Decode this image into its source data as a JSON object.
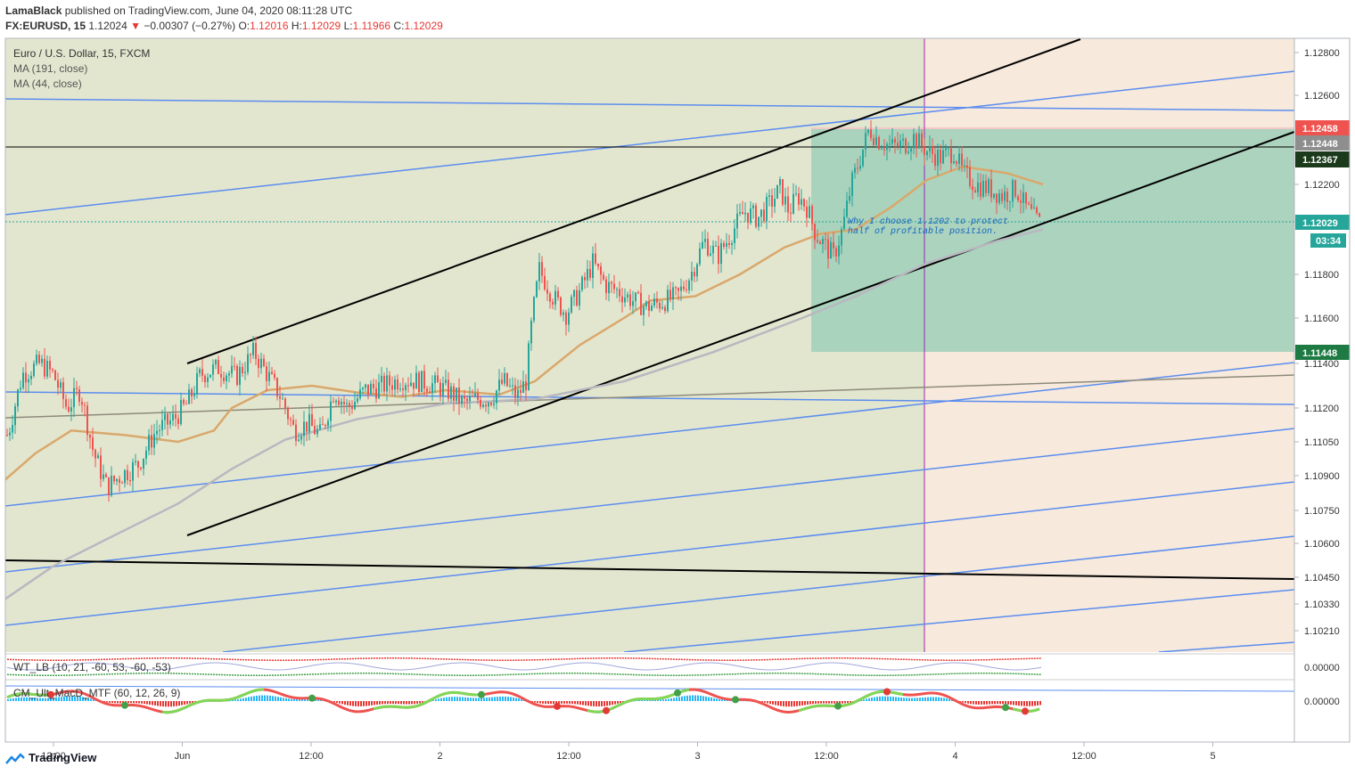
{
  "header": {
    "line1": {
      "author": "LamaBlack",
      "text": " published on TradingView.com, June 04, 2020 08:11:28 UTC"
    },
    "line2": {
      "symbol": "FX:EURUSD, 15",
      "price": "1.12024",
      "change": "−0.00307 (−0.27%)",
      "open_label": "O:",
      "open": "1.12016",
      "high_label": "H:",
      "high": "1.12029",
      "low_label": "L:",
      "low": "1.11966",
      "close_label": "C:",
      "close": "1.12029"
    }
  },
  "legend": {
    "title": "Euro / U.S. Dollar, 15, FXCM",
    "ma1": "MA (191, close)",
    "ma2": "MA (44, close)"
  },
  "annotation": {
    "line1": "Why I choose 1.1202 to protect",
    "line2": "half of profitable position."
  },
  "indicators": {
    "wt": "WT_LB (10, 21, -60, 53, -60, -53)",
    "macd": "CM_Ult_MacD_MTF (60, 12, 26, 9)",
    "wt_value": "0.00000",
    "macd_value": "0.00000"
  },
  "price_axis": [
    "1.12800",
    "1.12600",
    "1.12200",
    "1.11800",
    "1.11600",
    "1.11400",
    "1.11200",
    "1.11050",
    "1.10900",
    "1.10750",
    "1.10600",
    "1.10450",
    "1.10330",
    "1.10210"
  ],
  "price_tags": {
    "stop": "1.12458",
    "entry": "1.12448",
    "line": "1.12367",
    "current": "1.12029",
    "countdown": "03:34",
    "target": "1.11448"
  },
  "time_axis": [
    "12:00",
    "Jun",
    "12:00",
    "2",
    "12:00",
    "3",
    "12:00",
    "4",
    "12:00",
    "5"
  ],
  "footer": {
    "brand": "TradingView"
  },
  "colors": {
    "bull": "#26a69a",
    "bear": "#ef5350",
    "trend": "#000000",
    "channel": "#5b8def",
    "ma44": "#d9a86c",
    "ma191": "#b8b8c0",
    "stop_zone": "#f6d5d5",
    "target_zone": "#9ed1bc"
  },
  "chart_data": {
    "type": "candlestick",
    "symbol": "FX:EURUSD, 15",
    "title": "Euro / U.S. Dollar, 15, FXCM",
    "x": [
      "12:00",
      "Jun",
      "12:00",
      "2",
      "12:00",
      "3",
      "12:00",
      "4",
      "12:00",
      "5"
    ],
    "ylim": [
      1.1016,
      1.1288
    ],
    "price_path": [
      [
        0,
        1.11
      ],
      [
        10,
        1.111
      ],
      [
        25,
        1.1135
      ],
      [
        45,
        1.114
      ],
      [
        60,
        1.1135
      ],
      [
        75,
        1.112
      ],
      [
        90,
        1.1128
      ],
      [
        105,
        1.11
      ],
      [
        120,
        1.1085
      ],
      [
        135,
        1.109
      ],
      [
        155,
        1.1095
      ],
      [
        175,
        1.111
      ],
      [
        195,
        1.1115
      ],
      [
        210,
        1.1122
      ],
      [
        225,
        1.1135
      ],
      [
        245,
        1.1138
      ],
      [
        265,
        1.1134
      ],
      [
        285,
        1.1145
      ],
      [
        300,
        1.1135
      ],
      [
        315,
        1.1125
      ],
      [
        330,
        1.111
      ],
      [
        345,
        1.1113
      ],
      [
        360,
        1.1108
      ],
      [
        375,
        1.1128
      ],
      [
        390,
        1.112
      ],
      [
        410,
        1.1128
      ],
      [
        430,
        1.113
      ],
      [
        450,
        1.1133
      ],
      [
        470,
        1.1132
      ],
      [
        490,
        1.113
      ],
      [
        505,
        1.1127
      ],
      [
        520,
        1.1122
      ],
      [
        535,
        1.1124
      ],
      [
        550,
        1.1124
      ],
      [
        565,
        1.1132
      ],
      [
        580,
        1.1125
      ],
      [
        590,
        1.1132
      ],
      [
        597,
        1.116
      ],
      [
        605,
        1.1182
      ],
      [
        620,
        1.117
      ],
      [
        635,
        1.1162
      ],
      [
        650,
        1.1172
      ],
      [
        665,
        1.1185
      ],
      [
        680,
        1.1175
      ],
      [
        695,
        1.1172
      ],
      [
        710,
        1.1168
      ],
      [
        725,
        1.1165
      ],
      [
        740,
        1.1167
      ],
      [
        760,
        1.117
      ],
      [
        775,
        1.118
      ],
      [
        790,
        1.1195
      ],
      [
        805,
        1.1188
      ],
      [
        820,
        1.1198
      ],
      [
        835,
        1.1208
      ],
      [
        850,
        1.1205
      ],
      [
        865,
        1.1212
      ],
      [
        875,
        1.1218
      ],
      [
        885,
        1.1208
      ],
      [
        895,
        1.1215
      ],
      [
        905,
        1.121
      ],
      [
        915,
        1.1198
      ],
      [
        925,
        1.1193
      ],
      [
        935,
        1.1188
      ],
      [
        945,
        1.12
      ],
      [
        955,
        1.122
      ],
      [
        965,
        1.1232
      ],
      [
        975,
        1.1245
      ],
      [
        985,
        1.124
      ],
      [
        1000,
        1.1237
      ],
      [
        1015,
        1.1238
      ],
      [
        1025,
        1.1241
      ],
      [
        1040,
        1.1235
      ],
      [
        1055,
        1.1232
      ],
      [
        1070,
        1.1235
      ],
      [
        1080,
        1.1225
      ],
      [
        1095,
        1.122
      ],
      [
        1110,
        1.1218
      ],
      [
        1125,
        1.1215
      ],
      [
        1140,
        1.1218
      ],
      [
        1150,
        1.121
      ],
      [
        1160,
        1.1205
      ],
      [
        1168,
        1.1202
      ]
    ],
    "ma_44": [
      [
        5,
        1.1088
      ],
      [
        40,
        1.11
      ],
      [
        80,
        1.111
      ],
      [
        140,
        1.1108
      ],
      [
        200,
        1.1105
      ],
      [
        240,
        1.111
      ],
      [
        260,
        1.112
      ],
      [
        300,
        1.1128
      ],
      [
        350,
        1.113
      ],
      [
        400,
        1.1127
      ],
      [
        450,
        1.1125
      ],
      [
        500,
        1.1128
      ],
      [
        560,
        1.1126
      ],
      [
        600,
        1.1132
      ],
      [
        650,
        1.1148
      ],
      [
        700,
        1.116
      ],
      [
        730,
        1.1168
      ],
      [
        780,
        1.117
      ],
      [
        830,
        1.118
      ],
      [
        880,
        1.1192
      ],
      [
        920,
        1.1198
      ],
      [
        960,
        1.12
      ],
      [
        1000,
        1.121
      ],
      [
        1040,
        1.1222
      ],
      [
        1080,
        1.1228
      ],
      [
        1130,
        1.1225
      ],
      [
        1170,
        1.122
      ]
    ],
    "ma_191": [
      [
        5,
        1.1035
      ],
      [
        60,
        1.105
      ],
      [
        120,
        1.1062
      ],
      [
        200,
        1.1078
      ],
      [
        260,
        1.1093
      ],
      [
        320,
        1.1106
      ],
      [
        400,
        1.1115
      ],
      [
        500,
        1.1122
      ],
      [
        600,
        1.1124
      ],
      [
        700,
        1.1132
      ],
      [
        800,
        1.1145
      ],
      [
        900,
        1.116
      ],
      [
        960,
        1.117
      ],
      [
        1040,
        1.1185
      ],
      [
        1120,
        1.1195
      ],
      [
        1170,
        1.12
      ]
    ],
    "position": {
      "entry": 1.12448,
      "stop": 1.12458,
      "target": 1.11448,
      "line": 1.12367,
      "current": 1.12029
    },
    "annotation": "Why I choose 1.1202 to protect half of profitable position."
  }
}
